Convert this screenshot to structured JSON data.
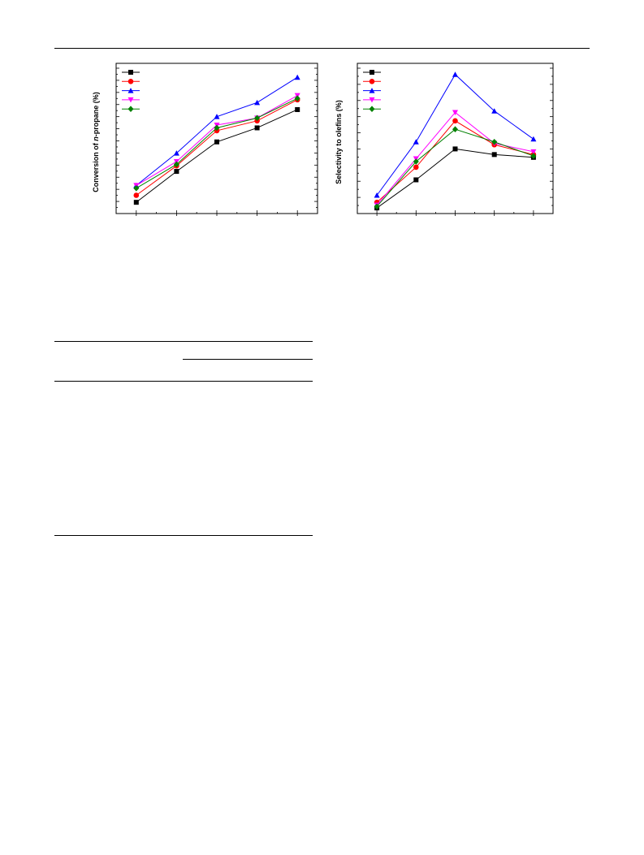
{
  "page": {
    "header_rule": true
  },
  "colors": {
    "black": "#000000",
    "red": "#ff0000",
    "blue": "#0000ff",
    "magenta": "#ff00ff",
    "green": "#008000"
  },
  "chart_data": [
    {
      "type": "line",
      "ylabel_pre": "Conversion of ",
      "ylabel_italic": "n",
      "ylabel_post": "-propane (%)",
      "x": [
        1,
        2,
        3,
        4,
        5
      ],
      "xlim": [
        0.5,
        5.5
      ],
      "ylim": [
        0,
        100
      ],
      "grid": false,
      "legend_position": "top-left",
      "series": [
        {
          "color": "#000000",
          "marker": "square",
          "values": [
            8,
            30,
            51,
            61,
            74
          ]
        },
        {
          "color": "#ff0000",
          "marker": "circle",
          "values": [
            13,
            34,
            59,
            66,
            81
          ]
        },
        {
          "color": "#0000ff",
          "marker": "triangle-up",
          "values": [
            20,
            43,
            69,
            79,
            97
          ]
        },
        {
          "color": "#ff00ff",
          "marker": "triangle-down",
          "values": [
            20,
            37,
            63,
            68,
            84
          ]
        },
        {
          "color": "#008000",
          "marker": "diamond",
          "values": [
            18,
            35,
            61,
            68,
            82
          ]
        }
      ]
    },
    {
      "type": "line",
      "ylabel": "Selectivity to olefins (%)",
      "x": [
        1,
        2,
        3,
        4,
        5
      ],
      "xlim": [
        0.5,
        5.5
      ],
      "ylim": [
        0,
        100
      ],
      "grid": false,
      "legend_position": "top-left",
      "series": [
        {
          "color": "#000000",
          "marker": "square",
          "values": [
            4,
            24,
            46,
            42,
            40
          ]
        },
        {
          "color": "#ff0000",
          "marker": "circle",
          "values": [
            8,
            33,
            66,
            49,
            42
          ]
        },
        {
          "color": "#0000ff",
          "marker": "triangle-up",
          "values": [
            13,
            51,
            99,
            73,
            53
          ]
        },
        {
          "color": "#ff00ff",
          "marker": "triangle-down",
          "values": [
            6,
            39,
            72,
            50,
            44
          ]
        },
        {
          "color": "#008000",
          "marker": "diamond",
          "values": [
            5,
            37,
            60,
            51,
            41
          ]
        }
      ]
    }
  ],
  "table": {
    "rows": 8
  }
}
